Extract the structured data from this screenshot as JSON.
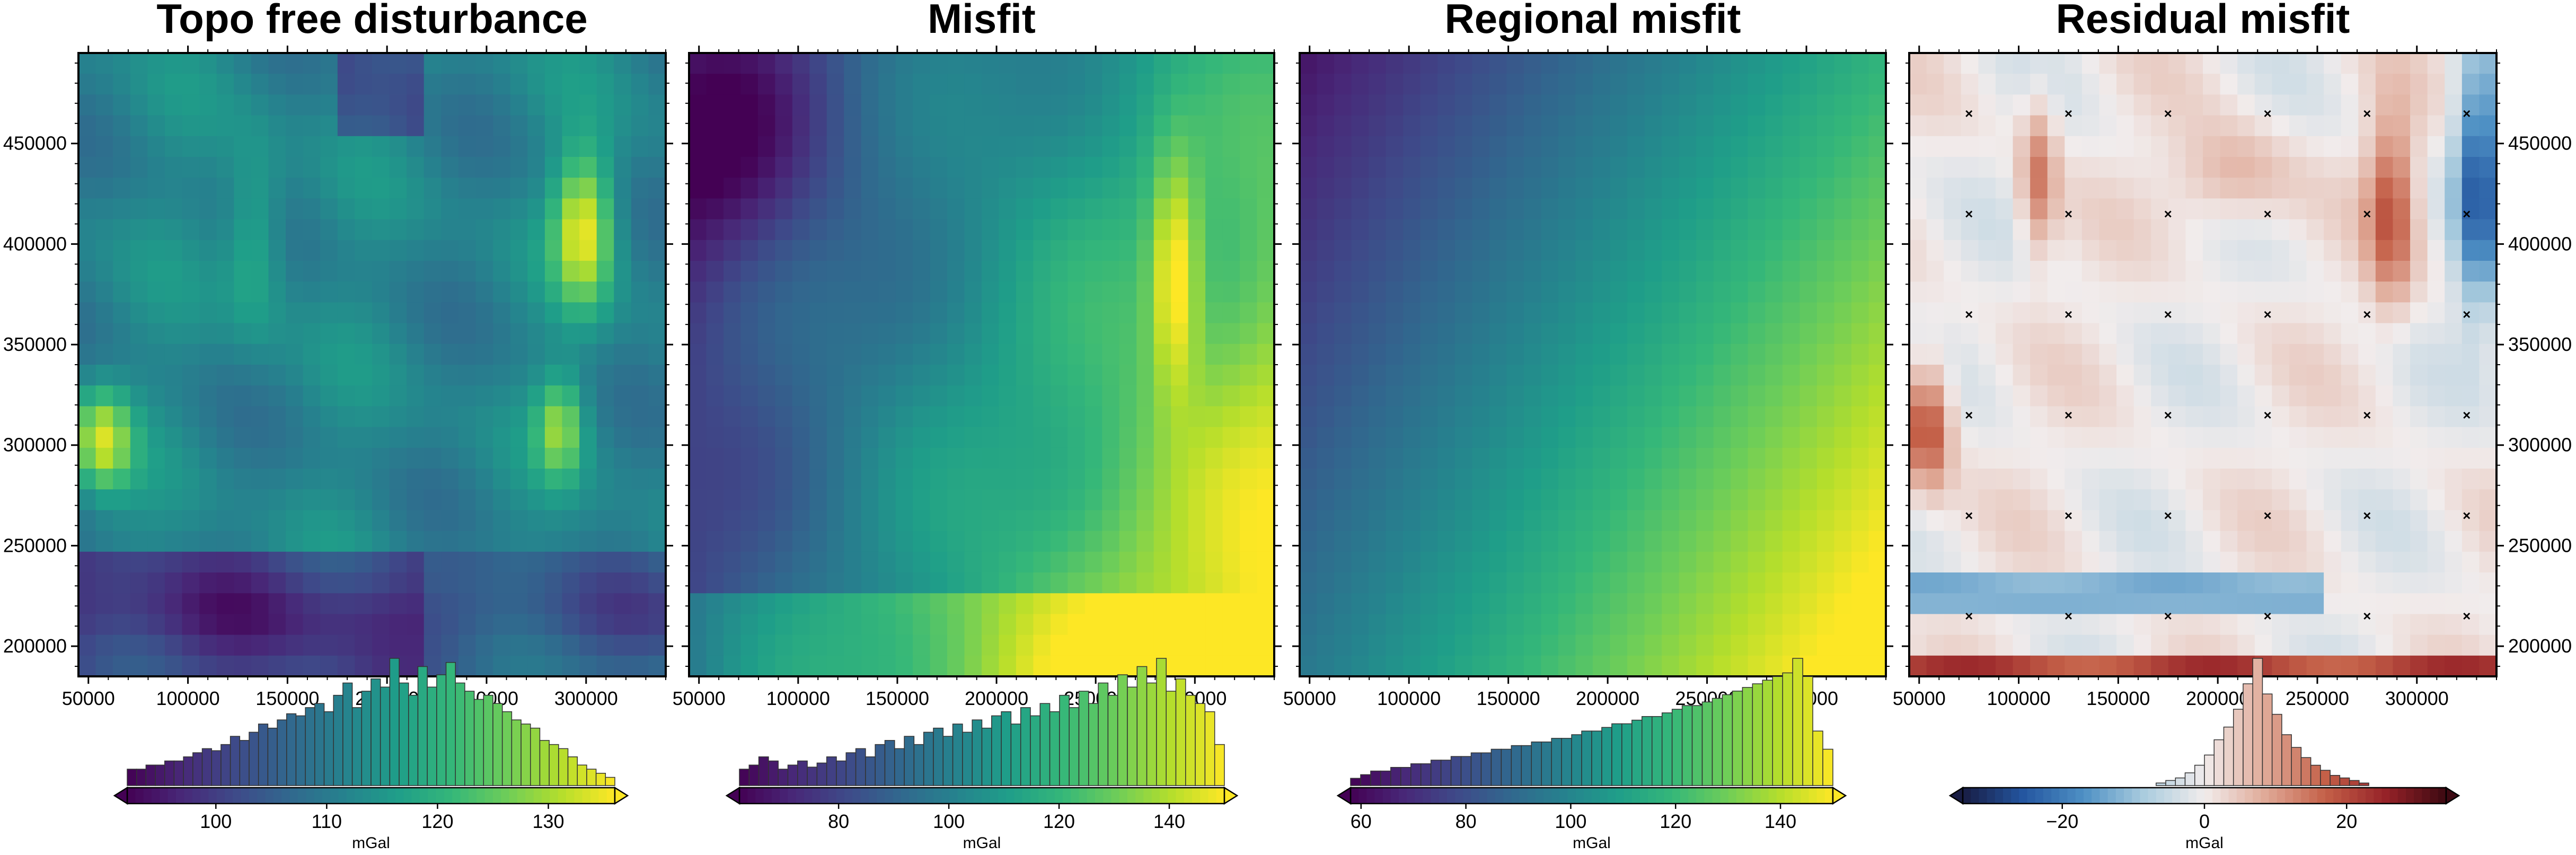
{
  "chart_data": [
    {
      "type": "heatmap",
      "title": "Topo free disturbance",
      "xlim": [
        45000,
        340000
      ],
      "ylim": [
        185000,
        495000
      ],
      "x_ticks": [
        "50000",
        "100000",
        "150000",
        "200000",
        "250000",
        "300000"
      ],
      "y_ticks": [
        "200000",
        "250000",
        "300000",
        "350000",
        "400000",
        "450000"
      ],
      "show_left_ticks": true,
      "show_right_ticks": false,
      "colormap": "viridis",
      "colorbar": {
        "label": "mGal",
        "ticks": [
          "100",
          "110",
          "120",
          "130"
        ],
        "tick_values": [
          100,
          110,
          120,
          130
        ],
        "range": [
          92,
          136
        ],
        "histogram": [
          8,
          8,
          10,
          10,
          12,
          12,
          14,
          16,
          18,
          17,
          20,
          24,
          22,
          26,
          30,
          28,
          32,
          35,
          34,
          38,
          40,
          36,
          44,
          50,
          38,
          46,
          52,
          48,
          62,
          50,
          44,
          58,
          48,
          54,
          60,
          50,
          46,
          42,
          44,
          40,
          36,
          32,
          30,
          28,
          22,
          20,
          18,
          14,
          10,
          8,
          6,
          4
        ]
      }
    },
    {
      "type": "heatmap",
      "title": "Misfit",
      "xlim": [
        45000,
        340000
      ],
      "ylim": [
        185000,
        495000
      ],
      "x_ticks": [
        "50000",
        "100000",
        "150000",
        "200000",
        "250000",
        "300000"
      ],
      "y_ticks": [],
      "show_left_ticks": false,
      "show_right_ticks": false,
      "colormap": "viridis",
      "colorbar": {
        "label": "mGal",
        "ticks": [
          "80",
          "100",
          "120",
          "140"
        ],
        "tick_values": [
          80,
          100,
          120,
          140
        ],
        "range": [
          62,
          150
        ],
        "histogram": [
          8,
          10,
          14,
          12,
          8,
          10,
          12,
          9,
          11,
          14,
          12,
          16,
          18,
          14,
          20,
          22,
          18,
          24,
          20,
          26,
          28,
          24,
          30,
          26,
          32,
          28,
          34,
          36,
          30,
          38,
          34,
          40,
          36,
          44,
          38,
          46,
          40,
          50,
          44,
          54,
          48,
          58,
          50,
          62,
          46,
          52,
          44,
          40,
          36,
          20
        ]
      }
    },
    {
      "type": "heatmap",
      "title": "Regional misfit",
      "xlim": [
        45000,
        340000
      ],
      "ylim": [
        185000,
        495000
      ],
      "x_ticks": [
        "50000",
        "100000",
        "150000",
        "200000",
        "250000",
        "300000"
      ],
      "y_ticks": [],
      "show_left_ticks": false,
      "show_right_ticks": false,
      "colormap": "viridis",
      "colorbar": {
        "label": "mGal",
        "ticks": [
          "60",
          "80",
          "100",
          "120",
          "140"
        ],
        "tick_values": [
          60,
          80,
          100,
          120,
          140
        ],
        "range": [
          58,
          150
        ],
        "histogram": [
          4,
          6,
          8,
          8,
          10,
          10,
          12,
          12,
          14,
          14,
          16,
          16,
          18,
          18,
          20,
          20,
          22,
          22,
          24,
          24,
          26,
          26,
          28,
          30,
          30,
          32,
          34,
          34,
          36,
          38,
          38,
          40,
          42,
          44,
          44,
          46,
          48,
          50,
          52,
          54,
          56,
          58,
          60,
          62,
          70,
          60,
          30,
          20
        ]
      }
    },
    {
      "type": "heatmap",
      "title": "Residual misfit",
      "xlim": [
        45000,
        340000
      ],
      "ylim": [
        185000,
        495000
      ],
      "x_ticks": [
        "50000",
        "100000",
        "150000",
        "200000",
        "250000",
        "300000"
      ],
      "y_ticks": [
        "200000",
        "250000",
        "300000",
        "350000",
        "400000",
        "450000"
      ],
      "show_left_ticks": false,
      "show_right_ticks": true,
      "colormap": "balance",
      "markers": "x",
      "marker_x": [
        75000,
        125000,
        175000,
        225000,
        275000,
        325000
      ],
      "marker_y": [
        215000,
        265000,
        315000,
        365000,
        415000,
        465000
      ],
      "colorbar": {
        "label": "mGal",
        "ticks": [
          "−20",
          "0",
          "20"
        ],
        "tick_values": [
          -20,
          0,
          20
        ],
        "range": [
          -34,
          34
        ],
        "histogram": [
          0,
          0,
          0,
          0,
          0,
          0,
          0,
          0,
          0,
          0,
          0,
          0,
          0,
          0,
          0,
          0,
          0,
          0,
          0,
          0,
          2,
          4,
          6,
          10,
          16,
          24,
          36,
          46,
          60,
          80,
          100,
          72,
          56,
          40,
          30,
          22,
          16,
          12,
          8,
          6,
          4,
          2,
          0,
          0,
          0,
          0,
          0,
          0,
          0,
          0
        ]
      }
    }
  ]
}
